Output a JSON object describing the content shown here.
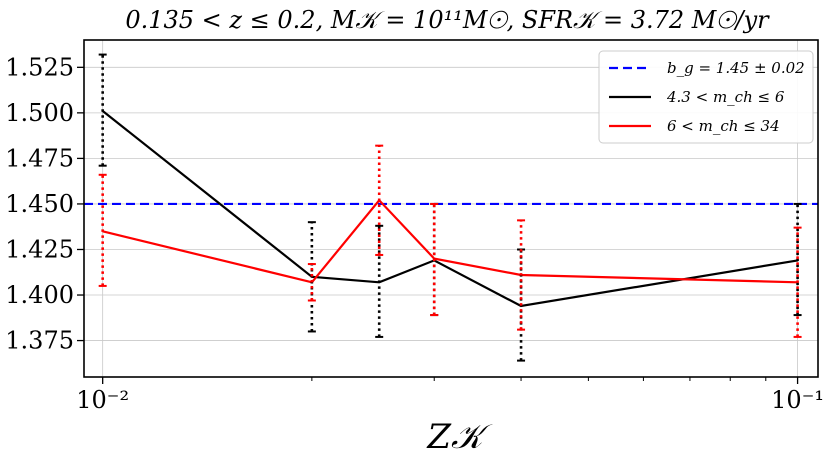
{
  "chart_data": {
    "type": "line",
    "title": "0.135 < z ≤ 0.2, M𝒦 = 10¹¹M☉, SFR𝒦 = 3.72 M☉/yr",
    "xlabel": "Z𝒦",
    "ylabel": "",
    "xscale": "log",
    "xlim": [
      0.0094,
      0.107
    ],
    "ylim": [
      1.355,
      1.54
    ],
    "grid": true,
    "legend_position": "top-right",
    "xticks": [
      {
        "value": 0.01,
        "label": "10⁻²"
      },
      {
        "value": 0.1,
        "label": "10⁻¹"
      }
    ],
    "yticks": [
      {
        "value": 1.375,
        "label": "1.375"
      },
      {
        "value": 1.4,
        "label": "1.400"
      },
      {
        "value": 1.425,
        "label": "1.425"
      },
      {
        "value": 1.45,
        "label": "1.450"
      },
      {
        "value": 1.475,
        "label": "1.475"
      },
      {
        "value": 1.5,
        "label": "1.500"
      },
      {
        "value": 1.525,
        "label": "1.525"
      }
    ],
    "hline": {
      "name": "b_g = 1.45 ± 0.02",
      "value": 1.45,
      "color": "#0000ff",
      "style": "dashed"
    },
    "series": [
      {
        "name": "4.3 < m_ch ≤ 6",
        "color": "#000000",
        "points": [
          {
            "x": 0.01,
            "y": 1.501,
            "ylo": 1.471,
            "yhi": 1.532
          },
          {
            "x": 0.02,
            "y": 1.41,
            "ylo": 1.38,
            "yhi": 1.44
          },
          {
            "x": 0.025,
            "y": 1.407,
            "ylo": 1.377,
            "yhi": 1.438
          },
          {
            "x": 0.03,
            "y": 1.419,
            "ylo": 1.389,
            "yhi": 1.45
          },
          {
            "x": 0.04,
            "y": 1.394,
            "ylo": 1.364,
            "yhi": 1.425
          },
          {
            "x": 0.1,
            "y": 1.419,
            "ylo": 1.389,
            "yhi": 1.45
          }
        ]
      },
      {
        "name": "6 < m_ch ≤ 34",
        "color": "#ff0000",
        "points": [
          {
            "x": 0.01,
            "y": 1.435,
            "ylo": 1.405,
            "yhi": 1.466
          },
          {
            "x": 0.02,
            "y": 1.407,
            "ylo": 1.397,
            "yhi": 1.417
          },
          {
            "x": 0.025,
            "y": 1.452,
            "ylo": 1.422,
            "yhi": 1.482
          },
          {
            "x": 0.03,
            "y": 1.42,
            "ylo": 1.389,
            "yhi": 1.45
          },
          {
            "x": 0.04,
            "y": 1.411,
            "ylo": 1.381,
            "yhi": 1.441
          },
          {
            "x": 0.1,
            "y": 1.407,
            "ylo": 1.377,
            "yhi": 1.437
          }
        ]
      }
    ]
  }
}
